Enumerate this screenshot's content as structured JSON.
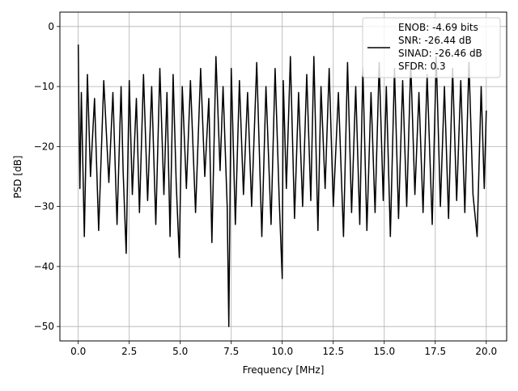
{
  "chart_data": {
    "type": "line",
    "title": "",
    "xlabel": "Frequency [MHz]",
    "ylabel": "PSD [dB]",
    "xlim": [
      -0.9,
      21.0
    ],
    "ylim": [
      -52.4,
      2.4
    ],
    "x_ticks": [
      0.0,
      2.5,
      5.0,
      7.5,
      10.0,
      12.5,
      15.0,
      17.5,
      20.0
    ],
    "x_tick_labels": [
      "0.0",
      "2.5",
      "5.0",
      "7.5",
      "10.0",
      "12.5",
      "15.0",
      "17.5",
      "20.0"
    ],
    "y_ticks": [
      0,
      -10,
      -20,
      -30,
      -40,
      -50
    ],
    "y_tick_labels": [
      "0",
      "−10",
      "−20",
      "−30",
      "−40",
      "−50"
    ],
    "grid": true,
    "legend": {
      "placement": "top-right",
      "entries": [
        "ENOB: -4.69 bits\nSNR: -26.44 dB\nSINAD: -26.46 dB\nSFDR: 0.3"
      ]
    },
    "series": [
      {
        "color": "#000000",
        "style": "dense noise",
        "x": [
          0.0,
          0.03,
          0.08,
          0.15,
          0.3,
          0.45,
          0.6,
          0.8,
          1.0,
          1.25,
          1.5,
          1.7,
          1.9,
          2.1,
          2.2,
          2.35,
          2.5,
          2.65,
          2.85,
          3.0,
          3.2,
          3.4,
          3.6,
          3.8,
          4.0,
          4.2,
          4.35,
          4.5,
          4.65,
          4.8,
          4.95,
          5.1,
          5.3,
          5.5,
          5.75,
          6.0,
          6.2,
          6.4,
          6.55,
          6.75,
          6.95,
          7.1,
          7.3,
          7.38,
          7.5,
          7.7,
          7.9,
          8.1,
          8.3,
          8.5,
          8.75,
          9.0,
          9.2,
          9.45,
          9.65,
          9.85,
          10.0,
          10.05,
          10.2,
          10.4,
          10.6,
          10.8,
          11.0,
          11.2,
          11.4,
          11.55,
          11.75,
          11.9,
          12.1,
          12.3,
          12.5,
          12.75,
          13.0,
          13.2,
          13.4,
          13.6,
          13.8,
          13.95,
          14.15,
          14.35,
          14.55,
          14.75,
          14.95,
          15.1,
          15.3,
          15.5,
          15.7,
          15.9,
          16.1,
          16.3,
          16.5,
          16.7,
          16.9,
          17.1,
          17.35,
          17.55,
          17.75,
          17.95,
          18.15,
          18.35,
          18.55,
          18.75,
          18.95,
          19.15,
          19.35,
          19.55,
          19.75,
          19.9,
          20.0
        ],
        "y": [
          -3,
          -13,
          -27,
          -11,
          -35,
          -8,
          -25,
          -12,
          -34,
          -9,
          -26,
          -11,
          -33,
          -10,
          -24,
          -37.8,
          -9,
          -28,
          -12,
          -31,
          -8,
          -29,
          -10,
          -33,
          -7,
          -28,
          -11,
          -35,
          -8,
          -26,
          -38.5,
          -10,
          -27,
          -9,
          -31,
          -7,
          -25,
          -12,
          -36,
          -5,
          -24,
          -10,
          -30,
          -50,
          -7,
          -33,
          -9,
          -28,
          -11,
          -30,
          -6,
          -35,
          -10,
          -33,
          -7,
          -29,
          -42,
          -9,
          -27,
          -5,
          -32,
          -11,
          -30,
          -8,
          -29,
          -5,
          -34,
          -10,
          -27,
          -7,
          -30,
          -11,
          -35,
          -6,
          -31,
          -10,
          -33,
          -7,
          -34,
          -11,
          -31,
          -6,
          -29,
          -10,
          -35,
          -7,
          -32,
          -9,
          -30,
          -6,
          -28,
          -11,
          -31,
          -8,
          -33,
          -5,
          -30,
          -10,
          -32,
          -7,
          -29,
          -9,
          -31,
          -6,
          -28,
          -35,
          -10,
          -27,
          -14
        ]
      }
    ]
  }
}
